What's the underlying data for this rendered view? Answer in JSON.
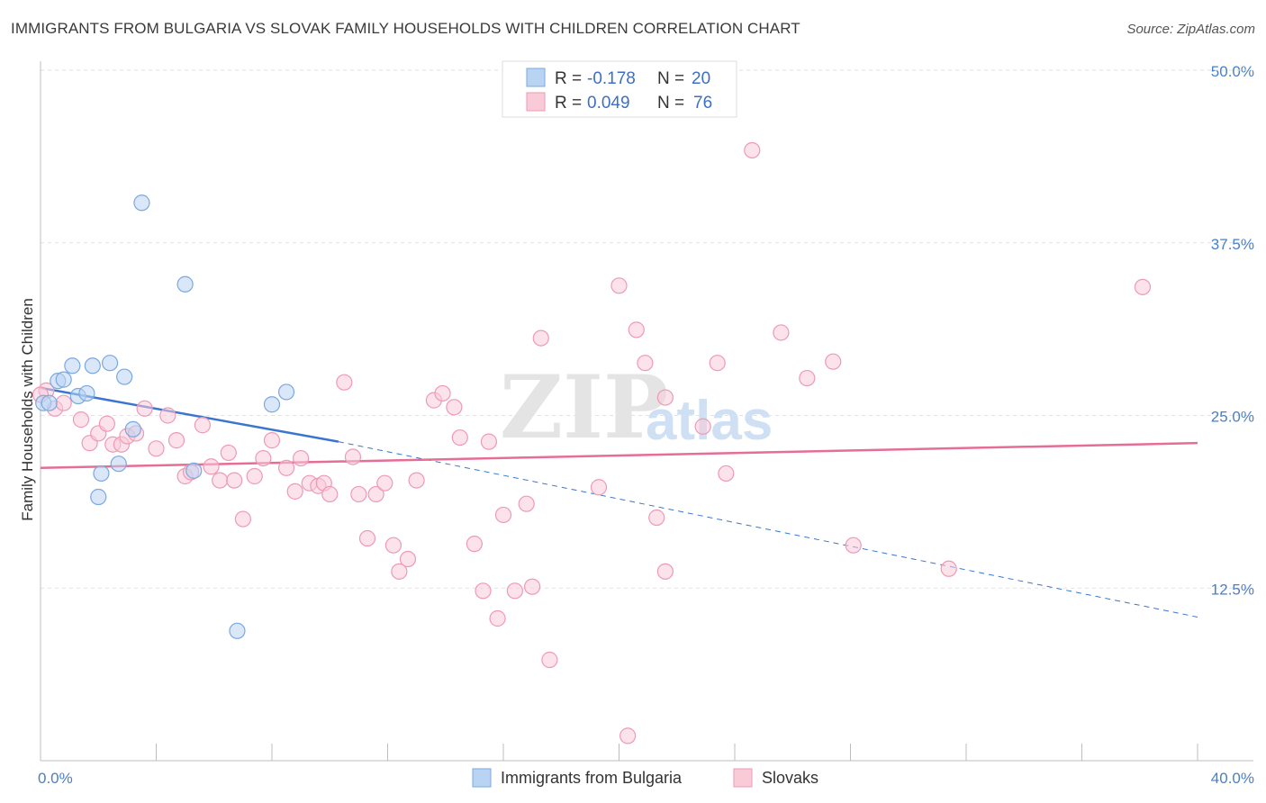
{
  "title": "IMMIGRANTS FROM BULGARIA VS SLOVAK FAMILY HOUSEHOLDS WITH CHILDREN CORRELATION CHART",
  "source": "Source: ZipAtlas.com",
  "colors": {
    "blue_fill": "#b9d3f2",
    "blue_stroke": "#7aa8e0",
    "blue_line": "#3a76d0",
    "pink_fill": "#f9cbd9",
    "pink_stroke": "#ee9ab5",
    "pink_line": "#e56d96",
    "grid": "#e2e2e2",
    "tick_text": "#4a7fc8"
  },
  "legend": {
    "rows": [
      {
        "r_label": "R = ",
        "r_value": "-0.178",
        "n_label": "N = ",
        "n_value": "20"
      },
      {
        "r_label": "R = ",
        "r_value": "0.049",
        "n_label": "N = ",
        "n_value": "76"
      }
    ]
  },
  "watermark": {
    "part1": "ZIP",
    "part2": "atlas"
  },
  "chart_data": {
    "type": "scatter",
    "title": "IMMIGRANTS FROM BULGARIA VS SLOVAK FAMILY HOUSEHOLDS WITH CHILDREN CORRELATION CHART",
    "xlabel": "",
    "ylabel": "Family Households with Children",
    "xlim": [
      0,
      40
    ],
    "ylim": [
      0,
      50
    ],
    "x_ticks": [
      {
        "v": 0,
        "label": "0.0%"
      },
      {
        "v": 40,
        "label": "40.0%"
      }
    ],
    "y_ticks": [
      {
        "v": 12.5,
        "label": "12.5%"
      },
      {
        "v": 25,
        "label": "25.0%"
      },
      {
        "v": 37.5,
        "label": "37.5%"
      },
      {
        "v": 50,
        "label": "50.0%"
      }
    ],
    "series": [
      {
        "name": "Immigrants from Bulgaria",
        "r": -0.178,
        "n": 20,
        "trend": {
          "x0": 0,
          "y0": 27.0,
          "x1": 10.3,
          "y1": 23.1,
          "dash_x1": 40,
          "dash_y1": 10.4
        },
        "points": [
          [
            0.1,
            25.9
          ],
          [
            0.3,
            25.9
          ],
          [
            0.6,
            27.5
          ],
          [
            0.8,
            27.6
          ],
          [
            1.1,
            28.6
          ],
          [
            1.3,
            26.4
          ],
          [
            1.6,
            26.6
          ],
          [
            1.8,
            28.6
          ],
          [
            2.1,
            20.8
          ],
          [
            2.0,
            19.1
          ],
          [
            2.4,
            28.8
          ],
          [
            2.7,
            21.5
          ],
          [
            2.9,
            27.8
          ],
          [
            3.2,
            24.0
          ],
          [
            3.5,
            40.4
          ],
          [
            5.0,
            34.5
          ],
          [
            5.3,
            21.0
          ],
          [
            6.8,
            9.4
          ],
          [
            8.0,
            25.8
          ],
          [
            8.5,
            26.7
          ]
        ]
      },
      {
        "name": "Slovaks",
        "r": 0.049,
        "n": 76,
        "trend": {
          "x0": 0,
          "y0": 21.2,
          "x1": 40,
          "y1": 23.0
        },
        "points": [
          [
            0.2,
            26.8
          ],
          [
            0.5,
            25.5
          ],
          [
            0.8,
            25.9
          ],
          [
            1.4,
            24.7
          ],
          [
            1.7,
            23.0
          ],
          [
            2.0,
            23.7
          ],
          [
            2.3,
            24.4
          ],
          [
            2.5,
            22.9
          ],
          [
            2.8,
            22.9
          ],
          [
            3.0,
            23.5
          ],
          [
            3.3,
            23.7
          ],
          [
            3.6,
            25.5
          ],
          [
            4.0,
            22.6
          ],
          [
            4.4,
            25.0
          ],
          [
            4.7,
            23.2
          ],
          [
            5.0,
            20.6
          ],
          [
            5.2,
            20.9
          ],
          [
            5.6,
            24.3
          ],
          [
            5.9,
            21.3
          ],
          [
            6.2,
            20.3
          ],
          [
            6.5,
            22.3
          ],
          [
            6.7,
            20.3
          ],
          [
            7.0,
            17.5
          ],
          [
            7.4,
            20.6
          ],
          [
            7.7,
            21.9
          ],
          [
            8.0,
            23.2
          ],
          [
            8.5,
            21.2
          ],
          [
            8.8,
            19.5
          ],
          [
            9.0,
            21.9
          ],
          [
            9.3,
            20.1
          ],
          [
            9.6,
            19.9
          ],
          [
            9.8,
            20.1
          ],
          [
            10.0,
            19.3
          ],
          [
            10.5,
            27.4
          ],
          [
            10.8,
            22.0
          ],
          [
            11.0,
            19.3
          ],
          [
            11.3,
            16.1
          ],
          [
            11.6,
            19.3
          ],
          [
            11.9,
            20.1
          ],
          [
            12.2,
            15.6
          ],
          [
            12.4,
            13.7
          ],
          [
            12.7,
            14.6
          ],
          [
            13.0,
            20.3
          ],
          [
            13.6,
            26.1
          ],
          [
            13.9,
            26.6
          ],
          [
            14.3,
            25.6
          ],
          [
            14.5,
            23.4
          ],
          [
            15.0,
            15.7
          ],
          [
            15.3,
            12.3
          ],
          [
            15.5,
            23.1
          ],
          [
            15.8,
            10.3
          ],
          [
            16.0,
            17.8
          ],
          [
            16.4,
            12.3
          ],
          [
            16.8,
            18.6
          ],
          [
            17.0,
            12.6
          ],
          [
            17.3,
            30.6
          ],
          [
            17.6,
            7.3
          ],
          [
            19.3,
            19.8
          ],
          [
            20.0,
            34.4
          ],
          [
            20.3,
            1.8
          ],
          [
            20.6,
            31.2
          ],
          [
            20.9,
            28.8
          ],
          [
            21.3,
            17.6
          ],
          [
            21.6,
            13.7
          ],
          [
            21.6,
            26.3
          ],
          [
            22.9,
            24.2
          ],
          [
            23.4,
            28.8
          ],
          [
            23.7,
            20.8
          ],
          [
            24.6,
            44.2
          ],
          [
            25.6,
            31.0
          ],
          [
            26.5,
            27.7
          ],
          [
            27.4,
            28.9
          ],
          [
            28.1,
            15.6
          ],
          [
            31.4,
            13.9
          ],
          [
            38.1,
            34.3
          ],
          [
            0.0,
            26.5
          ]
        ]
      }
    ]
  }
}
